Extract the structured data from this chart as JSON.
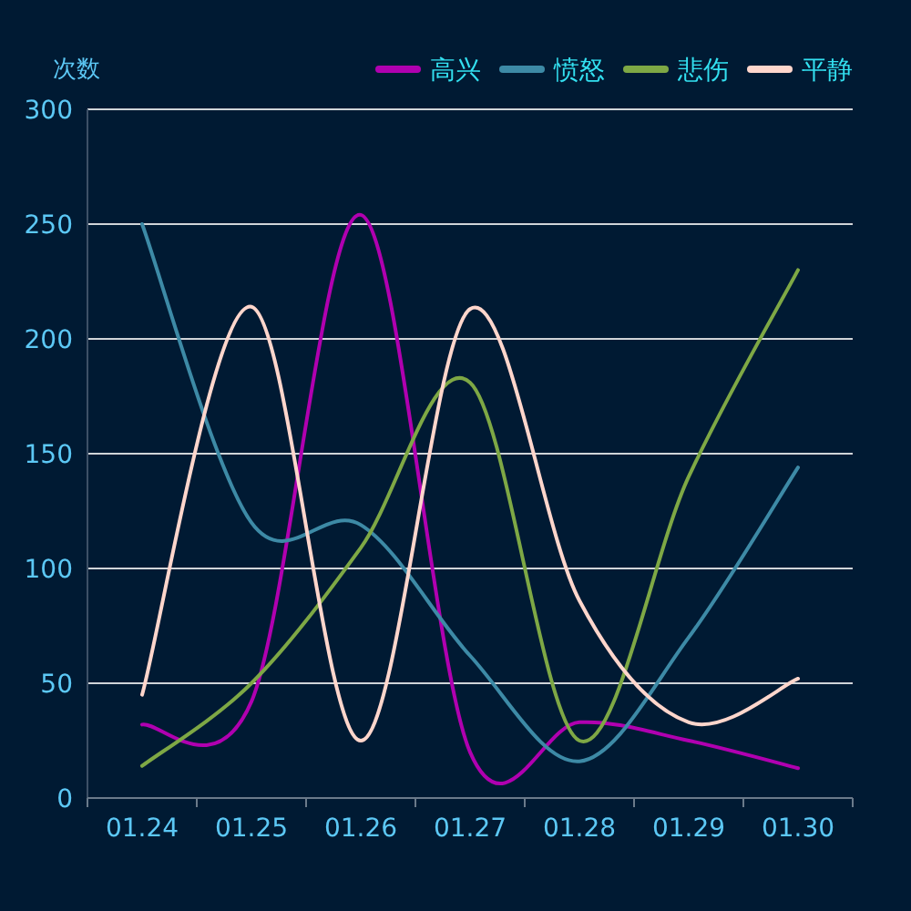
{
  "chart_data": {
    "type": "line",
    "ylabel": "次数",
    "categories": [
      "01.24",
      "01.25",
      "01.26",
      "01.27",
      "01.28",
      "01.29",
      "01.30"
    ],
    "series": [
      {
        "name": "高兴",
        "color": "#b000b0",
        "values": [
          32,
          42,
          254,
          20,
          33,
          25,
          13
        ]
      },
      {
        "name": "愤怒",
        "color": "#3d8aa6",
        "values": [
          250,
          120,
          119,
          62,
          16,
          70,
          144
        ]
      },
      {
        "name": "悲伤",
        "color": "#7ea845",
        "values": [
          14,
          50,
          109,
          181,
          25,
          140,
          230
        ]
      },
      {
        "name": "平静",
        "color": "#ffd6cc",
        "values": [
          45,
          214,
          25,
          213,
          86,
          33,
          52
        ]
      }
    ],
    "ylim": [
      0,
      300
    ],
    "yticks": [
      0,
      50,
      100,
      150,
      200,
      250,
      300
    ],
    "grid": "y",
    "legend": "top right",
    "marker": "none",
    "line_style": "solid"
  }
}
